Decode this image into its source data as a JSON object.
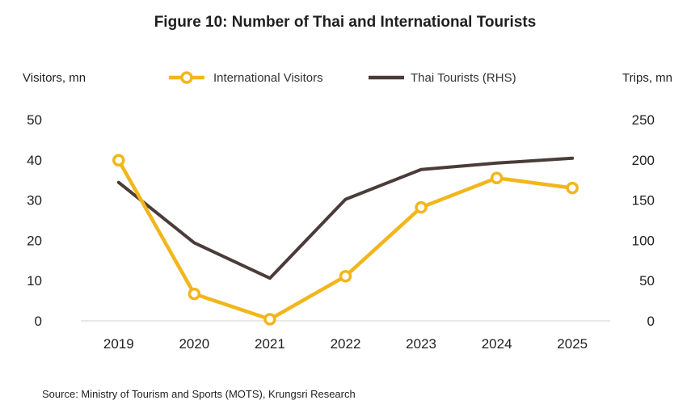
{
  "chart_data": {
    "type": "line",
    "title": "Figure 10: Number of Thai and International Tourists",
    "y_left_label": "Visitors, mn",
    "y_right_label": "Trips, mn",
    "categories": [
      "2019",
      "2020",
      "2021",
      "2022",
      "2023",
      "2024",
      "2025"
    ],
    "y_left_ticks": [
      "0",
      "10",
      "20",
      "30",
      "40",
      "50"
    ],
    "y_right_ticks": [
      "0",
      "50",
      "100",
      "150",
      "200",
      "250"
    ],
    "ylim_left": [
      0,
      50
    ],
    "ylim_right": [
      0,
      250
    ],
    "grid": false,
    "legend_position": "top-center",
    "series": [
      {
        "name": "International Visitors",
        "axis": "left",
        "color": "#F2B61C",
        "marker": "open-circle",
        "values": [
          39.9,
          6.7,
          0.4,
          11.1,
          28.2,
          35.5,
          33.0
        ]
      },
      {
        "name": "Thai Tourists (RHS)",
        "axis": "right",
        "color": "#4A3C38",
        "marker": "none",
        "values": [
          172,
          97,
          53,
          151,
          188,
          196,
          202
        ]
      }
    ],
    "source": "Source: Ministry of Tourism and Sports (MOTS), Krungsri Research"
  }
}
